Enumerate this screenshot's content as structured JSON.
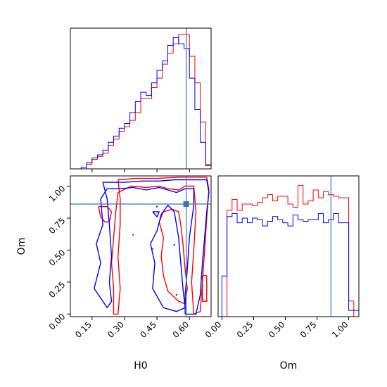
{
  "chart_data": {
    "type": "corner",
    "parameters": [
      "H0",
      "Om"
    ],
    "truth": {
      "H0": 0.585,
      "Om": 0.86
    },
    "colors": {
      "series_a": "#ff0000",
      "series_b": "#0000ff",
      "truth": "#3b75af"
    },
    "panels": [
      {
        "id": "h0-hist",
        "type": "histogram",
        "xlim": [
          0.05,
          0.7
        ],
        "x_edges": [
          0.05,
          0.075,
          0.1,
          0.125,
          0.15,
          0.175,
          0.2,
          0.225,
          0.25,
          0.275,
          0.3,
          0.325,
          0.35,
          0.375,
          0.4,
          0.425,
          0.45,
          0.475,
          0.5,
          0.525,
          0.55,
          0.575,
          0.6,
          0.625,
          0.65,
          0.675,
          0.7
        ],
        "series": [
          {
            "values": [
              0,
              0,
              0,
              0.03,
              0.06,
              0.08,
              0.1,
              0.15,
              0.19,
              0.24,
              0.27,
              0.31,
              0.36,
              0.45,
              0.45,
              0.52,
              0.58,
              0.67,
              0.74,
              0.8,
              0.86,
              0.86,
              0.72,
              0.55,
              0.3,
              0.03
            ]
          },
          {
            "values": [
              0,
              0,
              0.01,
              0.04,
              0.07,
              0.09,
              0.12,
              0.17,
              0.21,
              0.26,
              0.29,
              0.36,
              0.43,
              0.49,
              0.47,
              0.55,
              0.63,
              0.69,
              0.79,
              0.84,
              0.8,
              0.77,
              0.58,
              0.38,
              0.17,
              0.02
            ]
          }
        ]
      },
      {
        "id": "h0-om-contour",
        "type": "contour",
        "xlim": [
          0.05,
          0.7
        ],
        "ylim": [
          -0.02,
          1.08
        ],
        "xlabel": "H0",
        "ylabel": "Om",
        "xticks": [
          "0.15",
          "0.30",
          "0.45",
          "0.60"
        ],
        "yticks": [
          "0.00",
          "0.25",
          "0.50",
          "0.75",
          "1.00"
        ],
        "contours": [
          {
            "series": 0,
            "points": [
              [
                0.27,
                1.05
              ],
              [
                0.35,
                1.06
              ],
              [
                0.45,
                1.06
              ],
              [
                0.55,
                1.07
              ],
              [
                0.62,
                1.07
              ],
              [
                0.68,
                1.07
              ],
              [
                0.69,
                0.97
              ],
              [
                0.68,
                0.75
              ],
              [
                0.67,
                0.5
              ],
              [
                0.66,
                0.25
              ],
              [
                0.65,
                0.02
              ],
              [
                0.62,
                0.0
              ],
              [
                0.61,
                0.25
              ],
              [
                0.62,
                0.5
              ],
              [
                0.63,
                0.8
              ],
              [
                0.62,
                1.0
              ],
              [
                0.58,
                1.0
              ],
              [
                0.55,
                0.97
              ],
              [
                0.5,
                0.98
              ],
              [
                0.46,
                1.0
              ],
              [
                0.4,
                0.99
              ],
              [
                0.33,
                1.0
              ],
              [
                0.27,
                0.95
              ],
              [
                0.26,
                0.8
              ],
              [
                0.25,
                0.6
              ],
              [
                0.24,
                0.4
              ],
              [
                0.25,
                0.2
              ],
              [
                0.25,
                0.0
              ],
              [
                0.27,
                0.0
              ],
              [
                0.28,
                0.2
              ],
              [
                0.27,
                0.45
              ],
              [
                0.28,
                0.7
              ],
              [
                0.28,
                0.9
              ],
              [
                0.27,
                1.05
              ]
            ]
          },
          {
            "series": 0,
            "points": [
              [
                0.18,
                0.84
              ],
              [
                0.22,
                0.84
              ],
              [
                0.24,
                0.8
              ],
              [
                0.23,
                0.72
              ],
              [
                0.21,
                0.72
              ],
              [
                0.19,
                0.76
              ],
              [
                0.18,
                0.84
              ]
            ]
          },
          {
            "series": 0,
            "points": [
              [
                0.46,
                0.72
              ],
              [
                0.48,
                0.6
              ],
              [
                0.47,
                0.45
              ],
              [
                0.48,
                0.3
              ],
              [
                0.5,
                0.18
              ],
              [
                0.55,
                0.1
              ],
              [
                0.58,
                0.08
              ],
              [
                0.59,
                0.2
              ],
              [
                0.58,
                0.35
              ],
              [
                0.57,
                0.55
              ],
              [
                0.56,
                0.7
              ],
              [
                0.55,
                0.8
              ],
              [
                0.52,
                0.82
              ],
              [
                0.48,
                0.8
              ],
              [
                0.46,
                0.72
              ]
            ]
          },
          {
            "series": 0,
            "points": [
              [
                0.66,
                0.3
              ],
              [
                0.68,
                0.3
              ],
              [
                0.68,
                0.1
              ],
              [
                0.66,
                0.1
              ],
              [
                0.66,
                0.3
              ]
            ]
          },
          {
            "series": 1,
            "points": [
              [
                0.2,
                1.03
              ],
              [
                0.3,
                1.03
              ],
              [
                0.38,
                1.04
              ],
              [
                0.46,
                1.04
              ],
              [
                0.53,
                1.05
              ],
              [
                0.6,
                1.05
              ],
              [
                0.68,
                1.05
              ],
              [
                0.69,
                0.95
              ],
              [
                0.68,
                0.8
              ],
              [
                0.67,
                0.6
              ],
              [
                0.66,
                0.4
              ],
              [
                0.65,
                0.15
              ],
              [
                0.63,
                0.0
              ],
              [
                0.58,
                0.0
              ],
              [
                0.58,
                0.15
              ],
              [
                0.59,
                0.35
              ],
              [
                0.6,
                0.6
              ],
              [
                0.62,
                0.85
              ],
              [
                0.62,
                0.98
              ],
              [
                0.58,
                0.98
              ],
              [
                0.54,
                0.95
              ],
              [
                0.5,
                0.97
              ],
              [
                0.46,
                0.99
              ],
              [
                0.4,
                0.97
              ],
              [
                0.34,
                0.99
              ],
              [
                0.28,
                0.98
              ],
              [
                0.22,
                0.98
              ],
              [
                0.19,
                0.9
              ],
              [
                0.2,
                0.7
              ],
              [
                0.17,
                0.55
              ],
              [
                0.19,
                0.4
              ],
              [
                0.16,
                0.2
              ],
              [
                0.2,
                0.1
              ],
              [
                0.22,
                0.05
              ],
              [
                0.24,
                0.1
              ],
              [
                0.23,
                0.25
              ],
              [
                0.24,
                0.45
              ],
              [
                0.23,
                0.7
              ],
              [
                0.22,
                0.9
              ],
              [
                0.2,
                1.03
              ]
            ]
          },
          {
            "series": 1,
            "points": [
              [
                0.43,
                0.8
              ],
              [
                0.46,
                0.8
              ],
              [
                0.45,
                0.76
              ],
              [
                0.43,
                0.8
              ]
            ]
          },
          {
            "series": 1,
            "points": [
              [
                0.42,
                0.55
              ],
              [
                0.44,
                0.4
              ],
              [
                0.43,
                0.2
              ],
              [
                0.48,
                0.05
              ],
              [
                0.54,
                0.02
              ],
              [
                0.58,
                0.05
              ],
              [
                0.57,
                0.2
              ],
              [
                0.56,
                0.4
              ],
              [
                0.55,
                0.6
              ],
              [
                0.53,
                0.8
              ],
              [
                0.5,
                0.85
              ],
              [
                0.47,
                0.78
              ],
              [
                0.45,
                0.65
              ],
              [
                0.42,
                0.55
              ]
            ]
          }
        ],
        "markers": [
          [
            0.43,
            0.51
          ],
          [
            0.45,
            0.84
          ],
          [
            0.34,
            0.62
          ],
          [
            0.53,
            0.54
          ],
          [
            0.66,
            0.22
          ],
          [
            0.54,
            0.15
          ]
        ]
      },
      {
        "id": "om-hist",
        "type": "histogram",
        "xlim": [
          -0.03,
          1.08
        ],
        "xlabel": "Om",
        "xticks": [
          "0.00",
          "0.25",
          "0.50",
          "0.75",
          "1.00"
        ],
        "x_edges": [
          0.0,
          0.04,
          0.08,
          0.12,
          0.16,
          0.2,
          0.24,
          0.28,
          0.32,
          0.36,
          0.4,
          0.44,
          0.48,
          0.52,
          0.56,
          0.6,
          0.64,
          0.68,
          0.72,
          0.76,
          0.8,
          0.84,
          0.88,
          0.92,
          0.96,
          1.0,
          1.04,
          1.08
        ],
        "series": [
          {
            "values": [
              0.0,
              0.68,
              0.75,
              0.68,
              0.72,
              0.72,
              0.71,
              0.73,
              0.76,
              0.78,
              0.74,
              0.77,
              0.77,
              0.72,
              0.7,
              0.84,
              0.72,
              0.74,
              0.81,
              0.76,
              0.8,
              0.78,
              0.77,
              0.76,
              0.76,
              0.1,
              0.0
            ]
          },
          {
            "values": [
              0.26,
              0.64,
              0.66,
              0.6,
              0.63,
              0.6,
              0.63,
              0.62,
              0.58,
              0.61,
              0.64,
              0.62,
              0.6,
              0.58,
              0.65,
              0.62,
              0.61,
              0.62,
              0.62,
              0.66,
              0.6,
              0.62,
              0.66,
              0.6,
              0.6,
              0.04,
              0.04
            ]
          }
        ]
      }
    ]
  }
}
